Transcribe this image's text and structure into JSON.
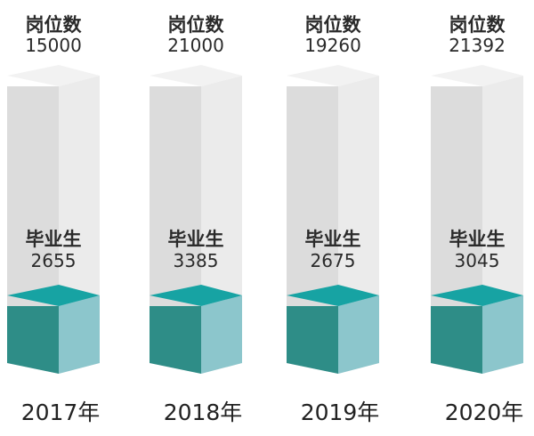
{
  "chart_data": {
    "type": "bar",
    "categories": [
      "2017年",
      "2018年",
      "2019年",
      "2020年"
    ],
    "series": [
      {
        "name": "岗位数",
        "values": [
          15000,
          21000,
          19260,
          21392
        ]
      },
      {
        "name": "毕业生",
        "values": [
          2655,
          3385,
          2675,
          3045
        ]
      }
    ],
    "colors": {
      "jobs_front": "#dcdcdc",
      "jobs_side": "#ebebeb",
      "jobs_top": "#f2f2f2",
      "grads_front": "#2e8d87",
      "grads_side": "#8cc6cc",
      "grads_top": "#17a3a3"
    }
  }
}
